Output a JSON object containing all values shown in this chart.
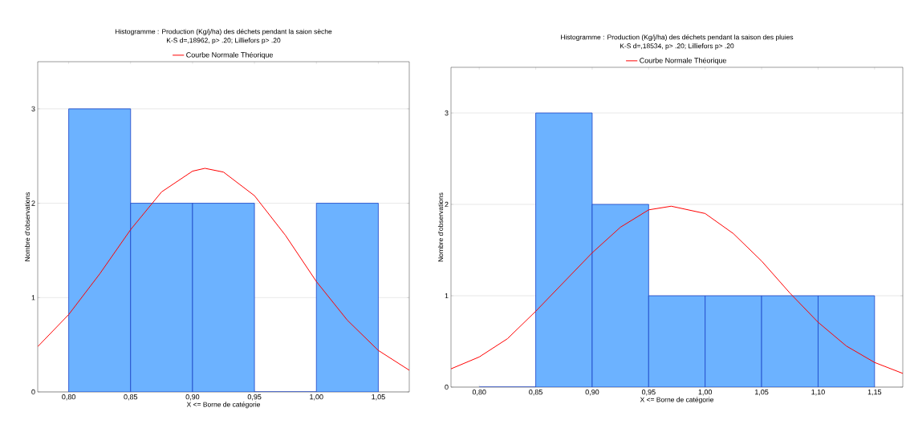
{
  "chart_data": [
    {
      "type": "histogram",
      "title": "Histogramme : Production (Kg/j/ha) des déchets pendant la saion sèche",
      "subtitle": "K-S d=,18962, p> .20; Lilliefors p> .20",
      "xlabel": "X <= Borne de catégorie",
      "ylabel": "Nombre d'observations",
      "bins": [
        0.8,
        0.85,
        0.9,
        0.95,
        1.0,
        1.05
      ],
      "values": [
        3,
        2,
        2,
        0,
        2
      ],
      "color": "#6cb2ff",
      "series": [
        {
          "type": "line",
          "name": "Courbe Normale Théorique",
          "color": "#ff0000",
          "x": [
            0.775,
            0.8,
            0.825,
            0.85,
            0.875,
            0.9,
            0.91,
            0.925,
            0.95,
            0.975,
            1.0,
            1.025,
            1.05,
            1.075
          ],
          "values": [
            0.48,
            0.82,
            1.25,
            1.72,
            2.12,
            2.34,
            2.37,
            2.33,
            2.08,
            1.66,
            1.17,
            0.76,
            0.44,
            0.23
          ]
        }
      ],
      "xlim": [
        0.775,
        1.075
      ],
      "ylim": [
        0,
        3.5
      ],
      "xticks": [
        {
          "value": 0.8,
          "label": "0,80"
        },
        {
          "value": 0.85,
          "label": "0,85"
        },
        {
          "value": 0.9,
          "label": "0,90"
        },
        {
          "value": 0.95,
          "label": "0,95"
        },
        {
          "value": 1.0,
          "label": "1,00"
        },
        {
          "value": 1.05,
          "label": "1,05"
        }
      ],
      "yticks": [
        0,
        1,
        2,
        3
      ],
      "grid": "y",
      "legend": "top"
    },
    {
      "type": "histogram",
      "title": "Histogramme : Production (Kg/j/ha) des déchets pendant la saison des pluies",
      "subtitle": "K-S d=,18534, p> .20; Lilliefors p> .20",
      "xlabel": "X <= Borne de catégorie",
      "ylabel": "Nombre d'observations",
      "bins": [
        0.8,
        0.85,
        0.9,
        0.95,
        1.0,
        1.05,
        1.1,
        1.15
      ],
      "values": [
        0,
        3,
        2,
        1,
        1,
        1,
        1
      ],
      "color": "#6cb2ff",
      "series": [
        {
          "type": "line",
          "name": "Courbe Normale Théorique",
          "color": "#ff0000",
          "x": [
            0.775,
            0.8,
            0.825,
            0.85,
            0.875,
            0.9,
            0.925,
            0.95,
            0.97,
            1.0,
            1.025,
            1.05,
            1.075,
            1.1,
            1.125,
            1.15,
            1.175
          ],
          "values": [
            0.2,
            0.33,
            0.53,
            0.83,
            1.15,
            1.47,
            1.75,
            1.94,
            1.98,
            1.9,
            1.68,
            1.38,
            1.03,
            0.71,
            0.45,
            0.27,
            0.15
          ]
        }
      ],
      "xlim": [
        0.775,
        1.175
      ],
      "ylim": [
        0,
        3.5
      ],
      "xticks": [
        {
          "value": 0.8,
          "label": "0,80"
        },
        {
          "value": 0.85,
          "label": "0,85"
        },
        {
          "value": 0.9,
          "label": "0,90"
        },
        {
          "value": 0.95,
          "label": "0,95"
        },
        {
          "value": 1.0,
          "label": "1,00"
        },
        {
          "value": 1.05,
          "label": "1,05"
        },
        {
          "value": 1.1,
          "label": "1,10"
        },
        {
          "value": 1.15,
          "label": "1,15"
        }
      ],
      "yticks": [
        0,
        1,
        2,
        3
      ],
      "grid": "y",
      "legend": "top"
    }
  ]
}
